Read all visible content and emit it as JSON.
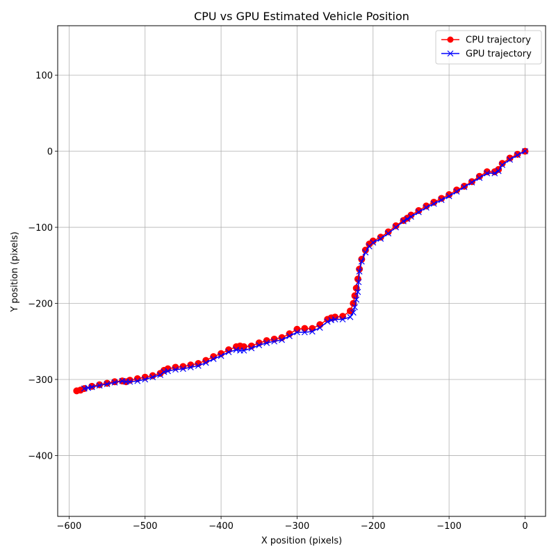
{
  "chart_data": {
    "type": "line",
    "title": "CPU vs GPU Estimated Vehicle Position",
    "xlabel": "X position (pixels)",
    "ylabel": "Y position (pixels)",
    "xlim": [
      -615,
      27
    ],
    "ylim": [
      -480,
      165
    ],
    "xticks": [
      -600,
      -500,
      -400,
      -300,
      -200,
      -100,
      0
    ],
    "yticks": [
      100,
      0,
      -100,
      -200,
      -300,
      -400
    ],
    "xtick_labels": [
      "−600",
      "−500",
      "−400",
      "−300",
      "−200",
      "−100",
      "0"
    ],
    "ytick_labels": [
      "100",
      "0",
      "−100",
      "−200",
      "−300",
      "−400"
    ],
    "grid": true,
    "legend_position": "top-right",
    "series": [
      {
        "name": "CPU trajectory",
        "color": "#ff0000",
        "marker": "circle",
        "x": [
          0,
          -10,
          -20,
          -30,
          -35,
          -40,
          -50,
          -60,
          -70,
          -80,
          -90,
          -100,
          -110,
          -120,
          -130,
          -140,
          -150,
          -155,
          -160,
          -170,
          -180,
          -190,
          -200,
          -205,
          -210,
          -215,
          -218,
          -220,
          -222,
          -224,
          -226,
          -230,
          -240,
          -250,
          -255,
          -260,
          -270,
          -280,
          -290,
          -300,
          -310,
          -320,
          -330,
          -340,
          -350,
          -360,
          -370,
          -375,
          -380,
          -390,
          -400,
          -410,
          -420,
          -430,
          -440,
          -450,
          -460,
          -470,
          -475,
          -480,
          -490,
          -500,
          -510,
          -520,
          -525,
          -530,
          -540,
          -550,
          -560,
          -570,
          -580,
          -585,
          -590
        ],
        "y": [
          0,
          -4,
          -9,
          -16,
          -24,
          -27,
          -27,
          -33,
          -40,
          -46,
          -51,
          -57,
          -62,
          -67,
          -72,
          -78,
          -84,
          -88,
          -91,
          -98,
          -106,
          -113,
          -118,
          -122,
          -130,
          -142,
          -155,
          -168,
          -180,
          -190,
          -200,
          -210,
          -217,
          -218,
          -219,
          -221,
          -228,
          -233,
          -233,
          -234,
          -240,
          -245,
          -247,
          -249,
          -252,
          -256,
          -257,
          -256,
          -257,
          -261,
          -266,
          -270,
          -275,
          -279,
          -281,
          -283,
          -284,
          -286,
          -288,
          -292,
          -295,
          -297,
          -299,
          -301,
          -303,
          -302,
          -303,
          -305,
          -307,
          -309,
          -312,
          -314,
          -315
        ]
      },
      {
        "name": "GPU trajectory",
        "color": "#0000ff",
        "marker": "x",
        "x": [
          0,
          -10,
          -20,
          -30,
          -35,
          -40,
          -50,
          -60,
          -70,
          -80,
          -90,
          -100,
          -110,
          -120,
          -130,
          -140,
          -150,
          -155,
          -160,
          -170,
          -180,
          -190,
          -200,
          -205,
          -210,
          -215,
          -218,
          -219,
          -220,
          -222,
          -224,
          -226,
          -230,
          -240,
          -250,
          -255,
          -260,
          -270,
          -280,
          -290,
          -300,
          -310,
          -320,
          -330,
          -340,
          -350,
          -360,
          -370,
          -375,
          -380,
          -390,
          -400,
          -410,
          -420,
          -430,
          -440,
          -450,
          -460,
          -470,
          -475,
          -480,
          -490,
          -500,
          -510,
          -520,
          -525,
          -530,
          -540,
          -550,
          -560,
          -570,
          -575,
          -580
        ],
        "y": [
          0,
          -5,
          -11,
          -18,
          -26,
          -29,
          -29,
          -35,
          -41,
          -47,
          -53,
          -59,
          -64,
          -69,
          -74,
          -80,
          -86,
          -89,
          -92,
          -100,
          -108,
          -115,
          -120,
          -125,
          -133,
          -145,
          -158,
          -172,
          -185,
          -195,
          -205,
          -212,
          -218,
          -221,
          -221,
          -222,
          -224,
          -232,
          -237,
          -238,
          -238,
          -243,
          -248,
          -250,
          -252,
          -255,
          -259,
          -262,
          -262,
          -261,
          -264,
          -269,
          -273,
          -278,
          -282,
          -284,
          -286,
          -287,
          -289,
          -290,
          -294,
          -297,
          -300,
          -302,
          -303,
          -303,
          -302,
          -304,
          -306,
          -308,
          -310,
          -311,
          -312
        ]
      }
    ]
  }
}
